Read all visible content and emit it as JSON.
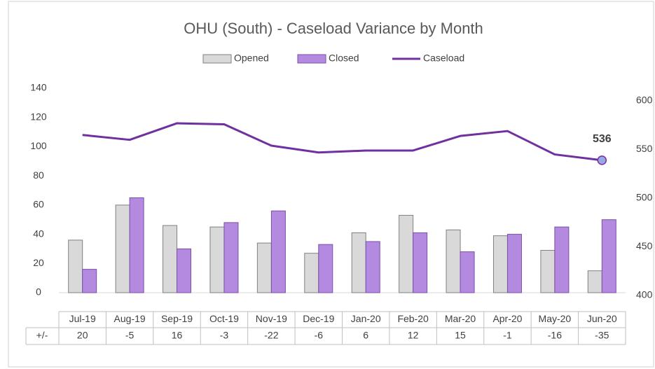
{
  "chart_data": {
    "type": "bar",
    "title": "OHU (South) - Caseload Variance by Month",
    "categories": [
      "Jul-19",
      "Aug-19",
      "Sep-19",
      "Oct-19",
      "Nov-19",
      "Dec-19",
      "Jan-20",
      "Feb-20",
      "Mar-20",
      "Apr-20",
      "May-20",
      "Jun-20"
    ],
    "series": [
      {
        "name": "Opened",
        "type": "bar",
        "color": "#d9d9d9",
        "values": [
          36,
          60,
          46,
          45,
          34,
          27,
          41,
          53,
          43,
          39,
          29,
          15
        ]
      },
      {
        "name": "Closed",
        "type": "bar",
        "color": "#b48ae0",
        "values": [
          16,
          65,
          30,
          48,
          56,
          33,
          35,
          41,
          28,
          40,
          45,
          50
        ]
      },
      {
        "name": "Caseload",
        "type": "line",
        "axis": "y2",
        "color": "#7030a0",
        "values": [
          562,
          557,
          574,
          573,
          551,
          544,
          546,
          546,
          561,
          566,
          542,
          536
        ]
      }
    ],
    "ylim": [
      0,
      140
    ],
    "yticks": [
      0,
      20,
      40,
      60,
      80,
      100,
      120,
      140
    ],
    "y2lim": [
      400,
      610
    ],
    "y2ticks": [
      400,
      450,
      500,
      550,
      600
    ],
    "legend": "top",
    "table": {
      "row_label": "+/-",
      "values": [
        "20",
        "-5",
        "16",
        "-3",
        "-22",
        "-6",
        "6",
        "12",
        "15",
        "-1",
        "-16",
        "-35"
      ]
    }
  }
}
